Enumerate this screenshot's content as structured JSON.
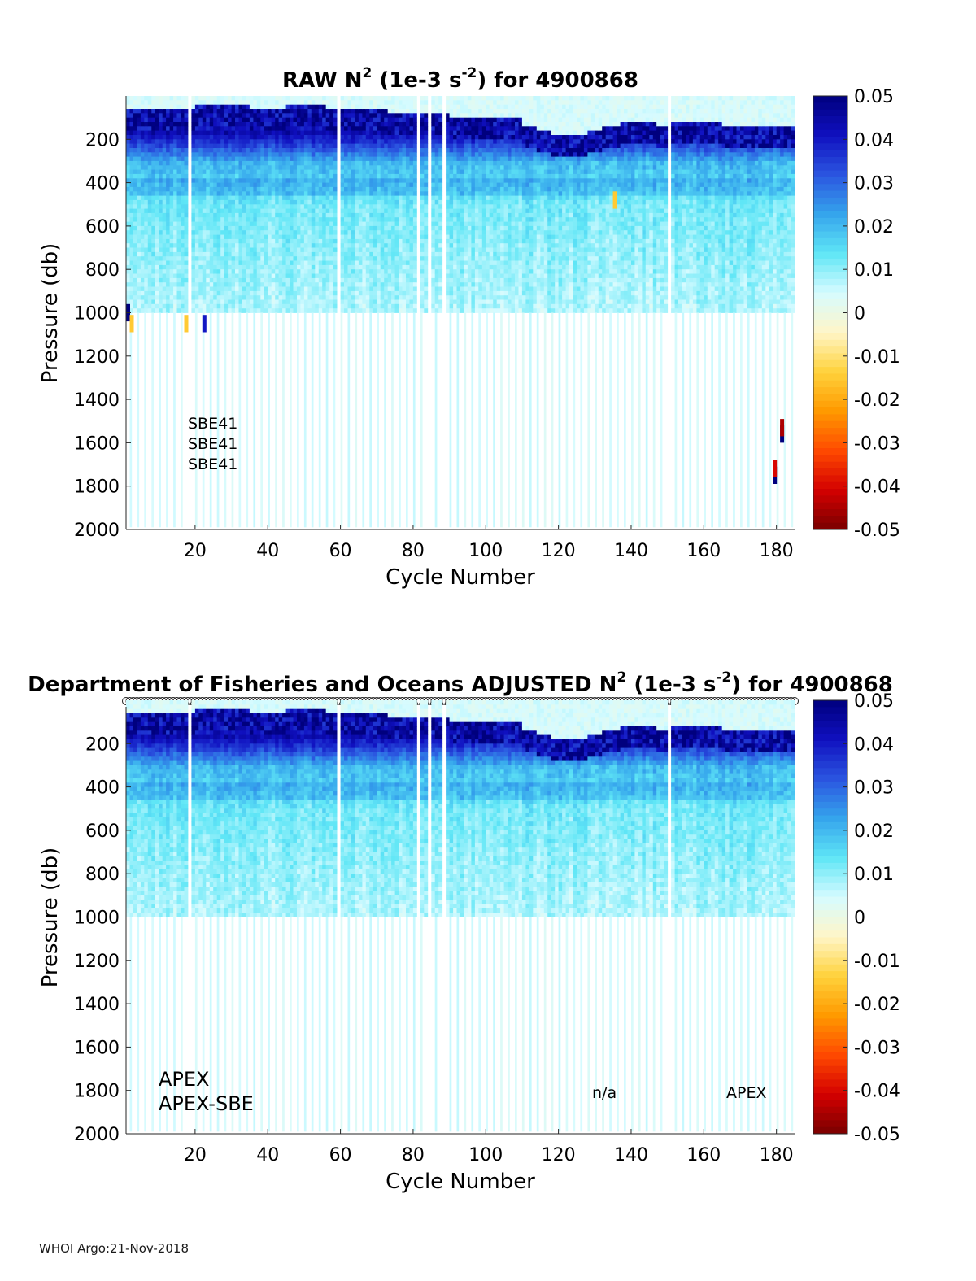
{
  "footer": "WHOI Argo:21-Nov-2018",
  "colors": {
    "colormap": [
      "#7a0000",
      "#d40000",
      "#ff4a00",
      "#ff9a00",
      "#ffd23c",
      "#fff6c8",
      "#d6fbff",
      "#5fe6f6",
      "#35a4ec",
      "#2b55e0",
      "#1010c0",
      "#00007e"
    ],
    "nan": "#ffffff"
  },
  "chart_data": [
    {
      "type": "heatmap",
      "title_main": "RAW N",
      "title_sup1": "2",
      "title_mid": " (1e-3 s",
      "title_sup2": "-2",
      "title_end": ") for 4900868",
      "xlabel": "Cycle Number",
      "ylabel": "Pressure (db)",
      "xlim": [
        1,
        185
      ],
      "ylim": [
        2000,
        0
      ],
      "xticks": [
        20,
        40,
        60,
        80,
        100,
        120,
        140,
        160,
        180
      ],
      "yticks": [
        200,
        400,
        600,
        800,
        1000,
        1200,
        1400,
        1600,
        1800,
        2000
      ],
      "colorbar": {
        "clim": [
          -0.05,
          0.05
        ],
        "ticks": [
          0.05,
          0.04,
          0.03,
          0.02,
          0.01,
          0,
          -0.01,
          -0.02,
          -0.03,
          -0.04,
          -0.05
        ],
        "tick_labels": [
          "0.05",
          "0.04",
          "0.03",
          "0.02",
          "0.01",
          "0",
          "-0.01",
          "-0.02",
          "-0.03",
          "-0.04",
          "-0.05"
        ]
      },
      "annotations": [
        "SBE41",
        "SBE41",
        "SBE41"
      ],
      "gap_cycles": [
        18,
        59,
        81,
        84,
        88,
        150
      ],
      "surface_mixed_layer_db": {
        "cycles_1_55": 60,
        "cycles_55_90": 40,
        "cycles_90_150": 180,
        "cycles_150_185": 120
      },
      "strong_stratification_layer_db": [
        60,
        160
      ],
      "values_by_depth": [
        {
          "pressure": 50,
          "value": 0.004
        },
        {
          "pressure": 150,
          "value": 0.045
        },
        {
          "pressure": 300,
          "value": 0.02
        },
        {
          "pressure": 500,
          "value": 0.012
        },
        {
          "pressure": 800,
          "value": 0.009
        },
        {
          "pressure": 1000,
          "value": 0.007
        },
        {
          "pressure": 1500,
          "value": 0.003
        },
        {
          "pressure": 2000,
          "value": 0.002
        }
      ],
      "outliers": [
        {
          "cycle": 1,
          "pressure": 1000,
          "value": 0.05
        },
        {
          "cycle": 2,
          "pressure": 1050,
          "value": -0.015
        },
        {
          "cycle": 17,
          "pressure": 1050,
          "value": -0.015
        },
        {
          "cycle": 22,
          "pressure": 1050,
          "value": 0.04
        },
        {
          "cycle": 135,
          "pressure": 480,
          "value": -0.015
        },
        {
          "cycle": 181,
          "pressure": 1560,
          "value": 0.05
        },
        {
          "cycle": 181,
          "pressure": 1530,
          "value": -0.045
        },
        {
          "cycle": 179,
          "pressure": 1750,
          "value": 0.05
        },
        {
          "cycle": 179,
          "pressure": 1720,
          "value": -0.04
        }
      ]
    },
    {
      "type": "heatmap",
      "title_prefix": "Department of Fisheries and Oceans  ADJUSTED N",
      "title_sup1": "2",
      "title_mid": " (1e-3 s",
      "title_sup2": "-2",
      "title_end": ") for 4900868",
      "xlabel": "Cycle Number",
      "ylabel": "Pressure (db)",
      "xlim": [
        1,
        185
      ],
      "ylim": [
        2000,
        0
      ],
      "xticks": [
        20,
        40,
        60,
        80,
        100,
        120,
        140,
        160,
        180
      ],
      "yticks": [
        200,
        400,
        600,
        800,
        1000,
        1200,
        1400,
        1600,
        1800,
        2000
      ],
      "colorbar": {
        "clim": [
          -0.05,
          0.05
        ],
        "ticks": [
          0.05,
          0.04,
          0.03,
          0.02,
          0.01,
          0,
          -0.01,
          -0.02,
          -0.03,
          -0.04,
          -0.05
        ],
        "tick_labels": [
          "0.05",
          "0.04",
          "0.03",
          "0.02",
          "0.01",
          "0",
          "-0.01",
          "-0.02",
          "-0.03",
          "-0.04",
          "-0.05"
        ]
      },
      "annotations": [
        "APEX",
        "APEX-SBE",
        "n/a",
        "APEX"
      ],
      "gap_cycles": [
        18,
        59,
        81,
        84,
        88,
        150
      ],
      "has_cycle_markers": true,
      "values_by_depth": [
        {
          "pressure": 50,
          "value": 0.004
        },
        {
          "pressure": 150,
          "value": 0.045
        },
        {
          "pressure": 300,
          "value": 0.02
        },
        {
          "pressure": 500,
          "value": 0.012
        },
        {
          "pressure": 800,
          "value": 0.009
        },
        {
          "pressure": 1000,
          "value": 0.007
        },
        {
          "pressure": 1500,
          "value": 0.003
        },
        {
          "pressure": 2000,
          "value": 0.002
        }
      ]
    }
  ]
}
